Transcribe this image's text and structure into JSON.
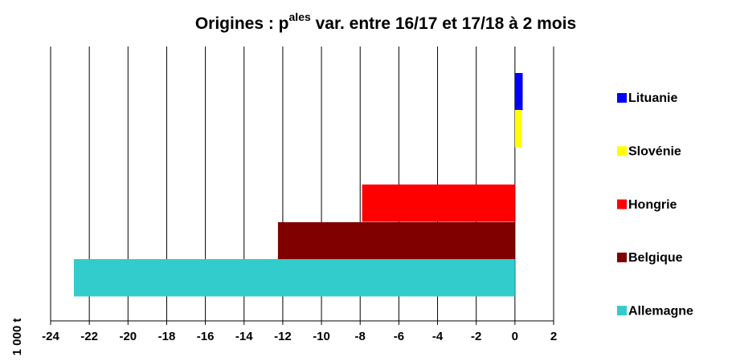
{
  "chart_data": {
    "type": "bar",
    "orientation": "horizontal",
    "title": [
      "Origines : p",
      "ales",
      " var. entre 16/17 et 17/18 à 2 mois"
    ],
    "ylabel": "1 000 t",
    "categories": [
      "Lituanie",
      "Slovénie",
      "Hongrie",
      "Belgique",
      "Allemagne"
    ],
    "values": [
      0.4,
      0.35,
      -7.9,
      -12.25,
      -22.8
    ],
    "colors": [
      "#0000ff",
      "#ffff00",
      "#ff0000",
      "#800000",
      "#33cccc"
    ],
    "xlim": [
      -24,
      2
    ],
    "xticks": [
      -24,
      -22,
      -20,
      -18,
      -16,
      -14,
      -12,
      -10,
      -8,
      -6,
      -4,
      -2,
      0,
      2
    ],
    "grid": true
  }
}
